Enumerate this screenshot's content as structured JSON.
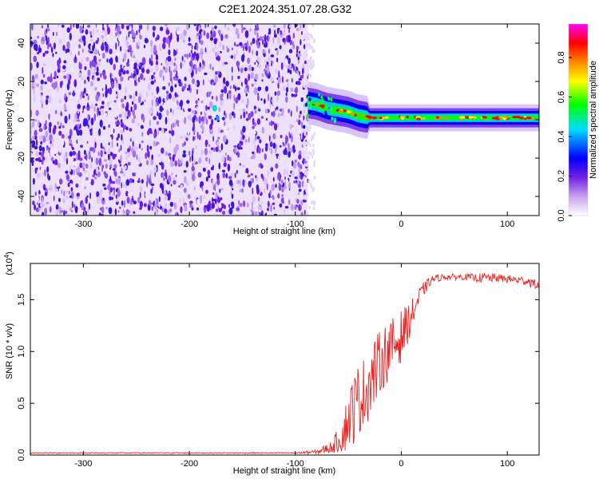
{
  "title": "C2E1.2024.351.07.28.G32",
  "colors": {
    "axis": "#000000",
    "snr_line": "#ee2222",
    "spectrogram_noise": "#6a1ee8",
    "spectrogram_peak": "#ff0000"
  },
  "chart_data": [
    {
      "type": "heatmap",
      "title": "C2E1.2024.351.07.28.G32",
      "xlabel": "Height of straight line (km)",
      "ylabel": "Frequency (Hz)",
      "xlim": [
        -350,
        130
      ],
      "ylim": [
        -50,
        50
      ],
      "xticks": [
        -300,
        -200,
        -100,
        0,
        100
      ],
      "yticks": [
        -40,
        -20,
        0,
        20,
        40
      ],
      "grid": false,
      "colorbar": {
        "label": "Normalized spectral amplitude",
        "range": [
          0,
          0.97
        ],
        "ticks": [
          "0.0",
          "0.2",
          "0.4",
          "0.6",
          "0.8"
        ],
        "colormap": [
          "#ffffff",
          "#8a2be2",
          "#0000ff",
          "#00ffff",
          "#00ff00",
          "#ffff00",
          "#ff8000",
          "#ff0000",
          "#ff00ff"
        ]
      },
      "features": {
        "noise_region_x": [
          -350,
          -88
        ],
        "signal_onset_x": -88,
        "ridge": [
          {
            "x": -90,
            "freq": 9
          },
          {
            "x": -80,
            "freq": 8
          },
          {
            "x": -70,
            "freq": 6
          },
          {
            "x": -60,
            "freq": 5
          },
          {
            "x": -50,
            "freq": 4
          },
          {
            "x": -40,
            "freq": 2
          },
          {
            "x": -30,
            "freq": 1
          },
          {
            "x": -20,
            "freq": 1
          },
          {
            "x": 0,
            "freq": 1
          },
          {
            "x": 50,
            "freq": 1
          },
          {
            "x": 130,
            "freq": 1
          }
        ]
      }
    },
    {
      "type": "line",
      "xlabel": "Height of straight line (km)",
      "ylabel": "SNR (10 * v/v)",
      "y_multiplier": "(x10",
      "y_multiplier_exp": "4",
      "y_multiplier_close": ")",
      "xlim": [
        -350,
        130
      ],
      "ylim": [
        0,
        1.85
      ],
      "xticks": [
        -300,
        -200,
        -100,
        0,
        100
      ],
      "yticks": [
        "0.0",
        "0.5",
        "1.0",
        "1.5"
      ],
      "grid": false,
      "series": [
        {
          "x": [
            -350,
            -300,
            -250,
            -200,
            -150,
            -100,
            -80,
            -65,
            -55,
            -50,
            -45,
            -40,
            -35,
            -30,
            -25,
            -20,
            -15,
            -10,
            -5,
            0,
            5,
            10,
            15,
            20,
            25,
            30,
            40,
            50,
            60,
            70,
            80,
            90,
            100,
            110,
            120,
            130
          ],
          "values": [
            0.02,
            0.02,
            0.02,
            0.02,
            0.02,
            0.02,
            0.03,
            0.08,
            0.2,
            0.35,
            0.45,
            0.55,
            0.6,
            0.7,
            0.8,
            0.9,
            0.97,
            1.03,
            1.08,
            1.15,
            1.25,
            1.35,
            1.48,
            1.58,
            1.65,
            1.7,
            1.72,
            1.72,
            1.72,
            1.71,
            1.71,
            1.71,
            1.7,
            1.69,
            1.68,
            1.63
          ],
          "noise_amp": [
            0.005,
            0.005,
            0.005,
            0.005,
            0.005,
            0.005,
            0.02,
            0.06,
            0.18,
            0.3,
            0.35,
            0.35,
            0.35,
            0.35,
            0.35,
            0.3,
            0.3,
            0.28,
            0.28,
            0.25,
            0.2,
            0.15,
            0.12,
            0.08,
            0.05,
            0.04,
            0.03,
            0.03,
            0.03,
            0.04,
            0.05,
            0.04,
            0.04,
            0.04,
            0.05,
            0.04
          ]
        }
      ]
    }
  ]
}
